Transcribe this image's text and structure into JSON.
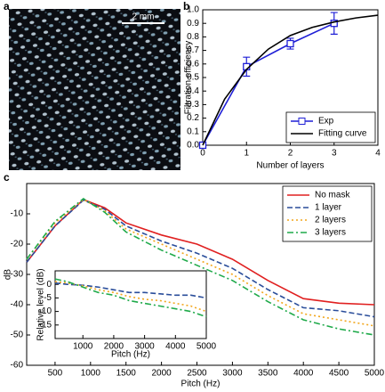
{
  "labels": {
    "a": "a",
    "b": "b",
    "c": "c"
  },
  "scale_bar_label": "2 mm",
  "chart_data": [
    {
      "type": "line",
      "xlabel": "Number of layers",
      "ylabel": "Filtration efficiency",
      "xlim": [
        0,
        4
      ],
      "ylim": [
        0,
        1
      ],
      "xticks": [
        0,
        1,
        2,
        3,
        4
      ],
      "yticks": [
        {
          "value": 0,
          "label": "0.0"
        },
        {
          "value": 0.1,
          "label": "0.1"
        },
        {
          "value": 0.2,
          "label": "0.2"
        },
        {
          "value": 0.3,
          "label": "0.3"
        },
        {
          "value": 0.4,
          "label": "0.4"
        },
        {
          "value": 0.5,
          "label": "0.5"
        },
        {
          "value": 0.6,
          "label": "0.6"
        },
        {
          "value": 0.7,
          "label": "0.7"
        },
        {
          "value": 0.8,
          "label": "0.8"
        },
        {
          "value": 0.9,
          "label": "0.9"
        },
        {
          "value": 1,
          "label": "1.0"
        }
      ],
      "legend": "lower right",
      "series": [
        {
          "name": "Exp",
          "color": "#1f1fd6",
          "dash": "solid",
          "marker": "square",
          "x": [
            0,
            1,
            2,
            3
          ],
          "values": [
            0,
            0.58,
            0.75,
            0.9
          ],
          "errors": [
            0,
            0.07,
            0.04,
            0.08
          ]
        },
        {
          "name": "Fitting curve",
          "color": "#000000",
          "dash": "solid",
          "x": [
            0,
            0.5,
            1,
            1.5,
            2,
            2.5,
            3,
            3.5,
            4
          ],
          "values": [
            0,
            0.34,
            0.56,
            0.71,
            0.81,
            0.87,
            0.91,
            0.94,
            0.96
          ]
        }
      ]
    },
    {
      "type": "line",
      "xlabel": "Pitch (Hz)",
      "ylabel": "dB",
      "xlim": [
        100,
        5000
      ],
      "ylim": [
        -60,
        0
      ],
      "xticks": [
        500,
        1000,
        1500,
        2000,
        2500,
        3000,
        3500,
        4000,
        4500,
        5000
      ],
      "yticks": [
        -60,
        -50,
        -40,
        -30,
        -20,
        -10
      ],
      "legend": "upper right",
      "series": [
        {
          "name": "No mask",
          "color": "#e02020",
          "dash": "solid",
          "x": [
            100,
            500,
            900,
            1200,
            1500,
            2000,
            2500,
            3000,
            3500,
            4000,
            4500,
            5000
          ],
          "values": [
            -26,
            -14,
            -5.3,
            -8,
            -13,
            -17,
            -20,
            -25,
            -32,
            -38,
            -39.5,
            -40
          ]
        },
        {
          "name": "1 layer",
          "color": "#2a4d9a",
          "dash": "dashed",
          "x": [
            100,
            500,
            900,
            1200,
            1500,
            2000,
            2500,
            3000,
            3500,
            4000,
            4500,
            5000
          ],
          "values": [
            -26,
            -14,
            -5.5,
            -8.5,
            -14,
            -19,
            -23,
            -28,
            -35,
            -41,
            -42,
            -44
          ]
        },
        {
          "name": "2 layers",
          "color": "#f2a61c",
          "dash": "dotted",
          "x": [
            100,
            500,
            900,
            1200,
            1500,
            2000,
            2500,
            3000,
            3500,
            4000,
            4500,
            5000
          ],
          "values": [
            -25,
            -13,
            -5.3,
            -9,
            -15,
            -20,
            -25,
            -30,
            -37,
            -43,
            -45,
            -47
          ]
        },
        {
          "name": "3 layers",
          "color": "#1faa4a",
          "dash": "dashdot",
          "x": [
            100,
            500,
            900,
            1200,
            1500,
            2000,
            2500,
            3000,
            3500,
            4000,
            4500,
            5000
          ],
          "values": [
            -25,
            -12.5,
            -5,
            -9.5,
            -16,
            -22,
            -27,
            -32,
            -39,
            -45,
            -48,
            -50
          ]
        }
      ]
    },
    {
      "type": "line",
      "xlabel": "Pitch (Hz)",
      "ylabel": "Relative level (dB)",
      "xlim": [
        100,
        5000
      ],
      "ylim": [
        -20,
        5
      ],
      "xticks": [
        1000,
        2000,
        3000,
        4000,
        5000
      ],
      "yticks": [
        -15,
        -10,
        -5,
        0
      ],
      "series": [
        {
          "color": "#2a4d9a",
          "dash": "dashed",
          "x": [
            100,
            500,
            1000,
            1500,
            2000,
            2500,
            3000,
            3500,
            4000,
            4500,
            5000
          ],
          "values": [
            0.5,
            0,
            -0.3,
            -1,
            -2,
            -3,
            -3,
            -3.5,
            -4,
            -4,
            -5
          ]
        },
        {
          "color": "#f2a61c",
          "dash": "dotted",
          "x": [
            100,
            500,
            1000,
            1500,
            2000,
            2500,
            3000,
            3500,
            4000,
            4500,
            5000
          ],
          "values": [
            1,
            0.5,
            -0.5,
            -2,
            -3,
            -4.5,
            -5.5,
            -6,
            -7,
            -8,
            -10
          ]
        },
        {
          "color": "#1faa4a",
          "dash": "dashdot",
          "x": [
            100,
            500,
            1000,
            1500,
            2000,
            2500,
            3000,
            3500,
            4000,
            4500,
            5000
          ],
          "values": [
            2,
            1,
            -1,
            -3,
            -4,
            -6,
            -7,
            -8,
            -9,
            -10,
            -12
          ]
        }
      ]
    }
  ]
}
